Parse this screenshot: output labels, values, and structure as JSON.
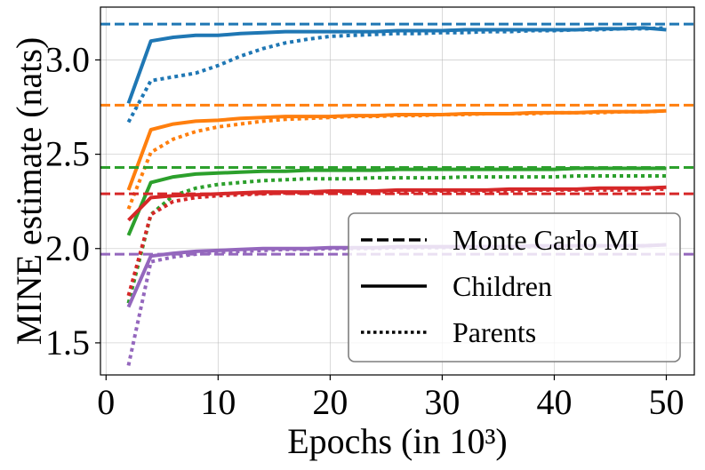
{
  "chart_data": {
    "type": "line",
    "xlabel": "Epochs (in 10³)",
    "ylabel": "MINE estimate (nats)",
    "xlim": [
      -0.5,
      52.5
    ],
    "ylim": [
      1.33,
      3.28
    ],
    "xticks": [
      0,
      10,
      20,
      30,
      40,
      50
    ],
    "xtick_labels": [
      "0",
      "10",
      "20",
      "30",
      "40",
      "50"
    ],
    "yticks": [
      1.5,
      2.0,
      2.5,
      3.0
    ],
    "ytick_labels": [
      "1.5",
      "2.0",
      "2.5",
      "3.0"
    ],
    "grid": true,
    "legend": {
      "location": "lower-right",
      "entries": [
        {
          "label": "Monte Carlo MI",
          "style": "dashed"
        },
        {
          "label": "Children",
          "style": "solid"
        },
        {
          "label": "Parents",
          "style": "dotted"
        }
      ]
    },
    "x": [
      2,
      4,
      6,
      8,
      10,
      12,
      14,
      16,
      18,
      20,
      22,
      24,
      26,
      28,
      30,
      32,
      34,
      36,
      38,
      40,
      42,
      44,
      46,
      48,
      50
    ],
    "series": [
      {
        "name": "Blue",
        "color": "#1f77b4",
        "monte_carlo": 3.19,
        "children": [
          2.77,
          3.1,
          3.12,
          3.13,
          3.13,
          3.14,
          3.145,
          3.15,
          3.15,
          3.15,
          3.15,
          3.15,
          3.155,
          3.155,
          3.155,
          3.16,
          3.16,
          3.16,
          3.16,
          3.16,
          3.16,
          3.165,
          3.165,
          3.17,
          3.16
        ],
        "parents": [
          2.67,
          2.89,
          2.91,
          2.93,
          2.97,
          3.02,
          3.06,
          3.09,
          3.11,
          3.125,
          3.13,
          3.135,
          3.14,
          3.14,
          3.145,
          3.145,
          3.15,
          3.15,
          3.155,
          3.155,
          3.16,
          3.16,
          3.165,
          3.165,
          3.17
        ]
      },
      {
        "name": "Orange",
        "color": "#ff7f0e",
        "monte_carlo": 2.76,
        "children": [
          2.31,
          2.63,
          2.66,
          2.675,
          2.68,
          2.69,
          2.695,
          2.7,
          2.7,
          2.7,
          2.705,
          2.705,
          2.71,
          2.71,
          2.71,
          2.715,
          2.715,
          2.715,
          2.72,
          2.72,
          2.72,
          2.725,
          2.725,
          2.725,
          2.73
        ],
        "parents": [
          2.21,
          2.51,
          2.58,
          2.62,
          2.645,
          2.66,
          2.675,
          2.685,
          2.69,
          2.695,
          2.7,
          2.7,
          2.705,
          2.705,
          2.71,
          2.71,
          2.715,
          2.715,
          2.715,
          2.72,
          2.72,
          2.72,
          2.725,
          2.725,
          2.73
        ]
      },
      {
        "name": "Green",
        "color": "#2ca02c",
        "monte_carlo": 2.43,
        "children": [
          2.07,
          2.35,
          2.38,
          2.395,
          2.4,
          2.405,
          2.41,
          2.41,
          2.415,
          2.415,
          2.415,
          2.415,
          2.42,
          2.42,
          2.42,
          2.42,
          2.42,
          2.42,
          2.42,
          2.42,
          2.425,
          2.425,
          2.425,
          2.425,
          2.425
        ],
        "parents": [
          1.71,
          2.18,
          2.28,
          2.32,
          2.34,
          2.35,
          2.36,
          2.365,
          2.37,
          2.37,
          2.37,
          2.375,
          2.375,
          2.375,
          2.375,
          2.38,
          2.38,
          2.38,
          2.38,
          2.38,
          2.385,
          2.385,
          2.385,
          2.385,
          2.385
        ]
      },
      {
        "name": "Red",
        "color": "#d62728",
        "monte_carlo": 2.29,
        "children": [
          2.15,
          2.27,
          2.28,
          2.285,
          2.29,
          2.295,
          2.3,
          2.3,
          2.3,
          2.305,
          2.305,
          2.305,
          2.31,
          2.31,
          2.31,
          2.31,
          2.31,
          2.315,
          2.315,
          2.315,
          2.315,
          2.32,
          2.32,
          2.32,
          2.325
        ],
        "parents": [
          1.75,
          2.18,
          2.25,
          2.27,
          2.28,
          2.285,
          2.29,
          2.295,
          2.295,
          2.3,
          2.3,
          2.3,
          2.3,
          2.3,
          2.305,
          2.305,
          2.305,
          2.305,
          2.31,
          2.31,
          2.31,
          2.31,
          2.31,
          2.315,
          2.315
        ]
      },
      {
        "name": "Purple",
        "color": "#9467bd",
        "monte_carlo": 1.97,
        "children": [
          1.69,
          1.96,
          1.975,
          1.985,
          1.99,
          1.995,
          2.0,
          2.0,
          2.0,
          2.005,
          2.005,
          2.005,
          2.01,
          2.01,
          2.01,
          2.01,
          2.01,
          2.01,
          2.015,
          2.015,
          2.015,
          2.015,
          2.015,
          2.015,
          2.02
        ],
        "parents": [
          1.38,
          1.93,
          1.955,
          1.97,
          1.98,
          1.985,
          1.99,
          1.995,
          1.995,
          2.0,
          2.0,
          2.0,
          2.005,
          2.005,
          2.005,
          2.01,
          2.01,
          2.01,
          2.01,
          2.01,
          2.015,
          2.015,
          2.015,
          2.015,
          2.02
        ]
      }
    ]
  }
}
